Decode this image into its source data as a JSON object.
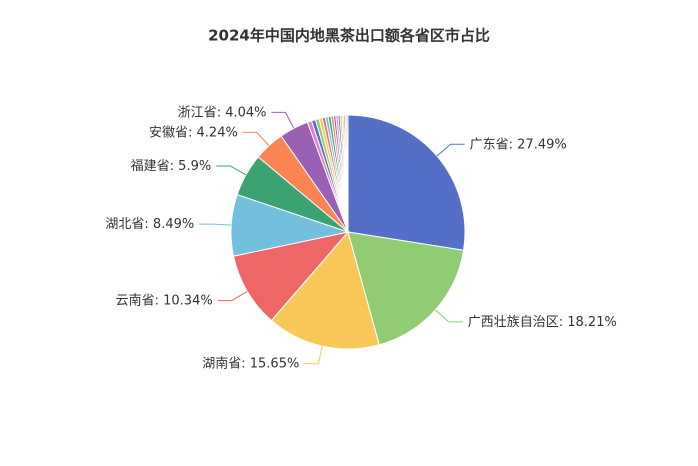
{
  "chart_data": {
    "type": "pie",
    "title": "2024年中国内地黑茶出口额各省区市占比",
    "categories": [
      "广东省",
      "广西壮族自治区",
      "湖南省",
      "云南省",
      "湖北省",
      "福建省",
      "安徽省",
      "浙江省",
      null,
      null,
      null,
      null,
      null,
      null,
      null,
      null,
      null,
      null,
      null,
      null,
      null,
      null,
      null,
      null
    ],
    "values": [
      27.49,
      18.21,
      15.65,
      10.34,
      8.49,
      5.9,
      4.24,
      4.04,
      0.6,
      0.55,
      0.5,
      0.45,
      0.42,
      0.4,
      0.38,
      0.35,
      0.32,
      0.3,
      0.28,
      0.26,
      0.24,
      0.22,
      0.2,
      0.17
    ],
    "value_labels": [
      ": 27.49%",
      ": 18.21%",
      ": 15.65%",
      ": 10.34%",
      ": 8.49%",
      ": 5.9%",
      ": 4.24%",
      ": 4.04%",
      null,
      null,
      null,
      null,
      null,
      null,
      null,
      null,
      null,
      null,
      null,
      null,
      null,
      null,
      null,
      null
    ],
    "colors": [
      "#5470c6",
      "#91cc75",
      "#fac858",
      "#ee6666",
      "#73c0de",
      "#3ba272",
      "#fc8452",
      "#9a60b4",
      "#ea7ccc"
    ]
  }
}
